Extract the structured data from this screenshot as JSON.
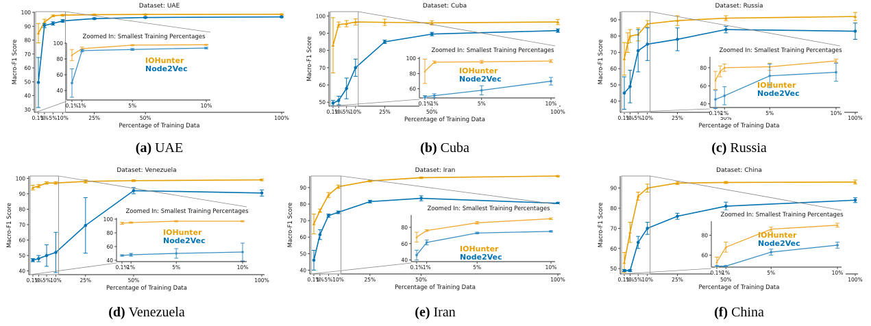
{
  "figure": {
    "colors": {
      "iohunter": "#E69F00",
      "node2vec": "#0072B2",
      "axis": "#222222",
      "zoom_box": "#888888"
    },
    "common": {
      "ylabel": "Macro-F1 Score",
      "xlabel": "Percentage of Training Data",
      "inset_title": "Zoomed In: Smallest Training Percentages",
      "legend": [
        "IOHunter",
        "Node2Vec"
      ],
      "x_tick_labels": [
        "0.1%",
        "1%",
        "5%",
        "10%",
        "25%",
        "50%",
        "100%"
      ],
      "inset_tick_labels": [
        "0.1%",
        "1%",
        "5%",
        "10%"
      ]
    }
  },
  "chart_data": [
    {
      "type": "line",
      "title": "Dataset: UAE",
      "caption_letter": "(a)",
      "caption_name": "UAE",
      "x": [
        0.1,
        1,
        5,
        10,
        25,
        50,
        100
      ],
      "ylim": [
        29,
        100.5
      ],
      "yticks": [
        30,
        40,
        50,
        60,
        70,
        80,
        90,
        100
      ],
      "inset_ylim": [
        28,
        100
      ],
      "inset_yticks": [
        40,
        60,
        80,
        100
      ],
      "series": [
        {
          "name": "IOHunter",
          "values": [
            85,
            93,
            97.5,
            98,
            98.3,
            98.5,
            98.6
          ],
          "errors": [
            7,
            2,
            0.6,
            0.5,
            0.4,
            0.3,
            0.3
          ]
        },
        {
          "name": "Node2Vec",
          "values": [
            49.5,
            90.5,
            92,
            93.8,
            95.5,
            96.3,
            96.7
          ],
          "errors": [
            18,
            1.5,
            1.2,
            1,
            0.6,
            0.5,
            0.5
          ]
        }
      ]
    },
    {
      "type": "line",
      "title": "Dataset: Cuba",
      "caption_letter": "(b)",
      "caption_name": "Cuba",
      "x": [
        0.1,
        1,
        5,
        10,
        25,
        50,
        100
      ],
      "ylim": [
        48.5,
        102.5
      ],
      "yticks": [
        50,
        60,
        70,
        80,
        90,
        100
      ],
      "inset_ylim": [
        48,
        102
      ],
      "inset_yticks": [
        60,
        80,
        100
      ],
      "series": [
        {
          "name": "IOHunter",
          "values": [
            83,
            95,
            95.5,
            96.5,
            96.3,
            96,
            96.5
          ],
          "errors": [
            16,
            1.5,
            1.8,
            1.8,
            1.8,
            1.2,
            1.5
          ]
        },
        {
          "name": "Node2Vec",
          "values": [
            49.5,
            51,
            58,
            70,
            85,
            89.5,
            91.5
          ],
          "errors": [
            1.5,
            2.5,
            6,
            5,
            1,
            1,
            1
          ]
        }
      ]
    },
    {
      "type": "line",
      "title": "Dataset: Russia",
      "caption_letter": "(c)",
      "caption_name": "Russia",
      "x": [
        0.1,
        1,
        5,
        10,
        25,
        50,
        100
      ],
      "ylim": [
        34,
        95
      ],
      "yticks": [
        40,
        50,
        60,
        70,
        80,
        90
      ],
      "inset_ylim": [
        36,
        92
      ],
      "inset_yticks": [
        40,
        60,
        80
      ],
      "series": [
        {
          "name": "IOHunter",
          "values": [
            66,
            76,
            80,
            81,
            87.5,
            89.5,
            91,
            92
          ],
          "x": [
            0.1,
            0.5,
            1,
            5,
            10,
            25,
            50,
            100
          ],
          "errors": [
            10,
            6,
            4,
            4,
            2,
            3,
            1.5,
            2.5
          ]
        },
        {
          "name": "Node2Vec",
          "values": [
            45,
            49,
            71,
            75,
            78,
            84,
            83
          ],
          "errors": [
            10,
            10,
            13,
            10,
            7,
            2,
            5
          ]
        }
      ]
    },
    {
      "type": "line",
      "title": "Dataset: Venezuela",
      "caption_letter": "(d)",
      "caption_name": "Venezuela",
      "x": [
        0.1,
        1,
        5,
        10,
        25,
        50,
        100
      ],
      "ylim": [
        38.5,
        101.5
      ],
      "yticks": [
        40,
        50,
        60,
        70,
        80,
        90,
        100
      ],
      "inset_ylim": [
        38,
        102
      ],
      "inset_yticks": [
        40,
        60,
        80,
        100
      ],
      "series": [
        {
          "name": "IOHunter",
          "values": [
            94,
            95,
            97,
            97,
            98,
            98.5,
            99
          ],
          "errors": [
            1.5,
            1,
            0.8,
            0.8,
            1,
            0.5,
            0.5
          ]
        },
        {
          "name": "Node2Vec",
          "values": [
            47,
            48,
            50,
            52,
            69.5,
            92,
            90.5
          ],
          "errors": [
            1,
            2,
            7,
            13,
            18,
            2,
            2
          ]
        }
      ]
    },
    {
      "type": "line",
      "title": "Dataset: Iran",
      "caption_letter": "(e)",
      "caption_name": "Iran",
      "x": [
        0.1,
        1,
        5,
        10,
        25,
        50,
        100
      ],
      "ylim": [
        38.5,
        97
      ],
      "yticks": [
        40,
        50,
        60,
        70,
        80,
        90
      ],
      "inset_ylim": [
        38,
        95
      ],
      "inset_yticks": [
        40,
        60,
        80
      ],
      "series": [
        {
          "name": "IOHunter",
          "values": [
            68,
            76,
            85.5,
            90.5,
            94,
            96,
            97
          ],
          "errors": [
            6,
            1,
            1.5,
            1,
            0.5,
            0.4,
            0.3
          ]
        },
        {
          "name": "Node2Vec",
          "values": [
            46,
            61.5,
            73,
            75,
            81.5,
            83.5,
            80.5
          ],
          "errors": [
            6,
            3,
            1,
            0.8,
            0.8,
            1.5,
            0.5
          ]
        }
      ]
    },
    {
      "type": "line",
      "title": "Dataset: China",
      "caption_letter": "(f)",
      "caption_name": "China",
      "x": [
        0.1,
        1,
        5,
        10,
        25,
        50,
        100
      ],
      "ylim": [
        48,
        96
      ],
      "yticks": [
        50,
        60,
        70,
        80,
        90
      ],
      "inset_ylim": [
        48,
        94
      ],
      "inset_yticks": [
        60,
        80
      ],
      "series": [
        {
          "name": "IOHunter",
          "values": [
            53,
            68,
            86,
            90,
            92.5,
            92.8,
            93
          ],
          "errors": [
            5,
            5,
            2,
            2,
            0.7,
            0.5,
            1
          ]
        },
        {
          "name": "Node2Vec",
          "values": [
            49,
            49,
            63,
            70,
            76,
            81,
            84
          ],
          "errors": [
            0.5,
            0.5,
            3,
            3,
            1.5,
            2,
            1.2
          ]
        }
      ]
    }
  ]
}
